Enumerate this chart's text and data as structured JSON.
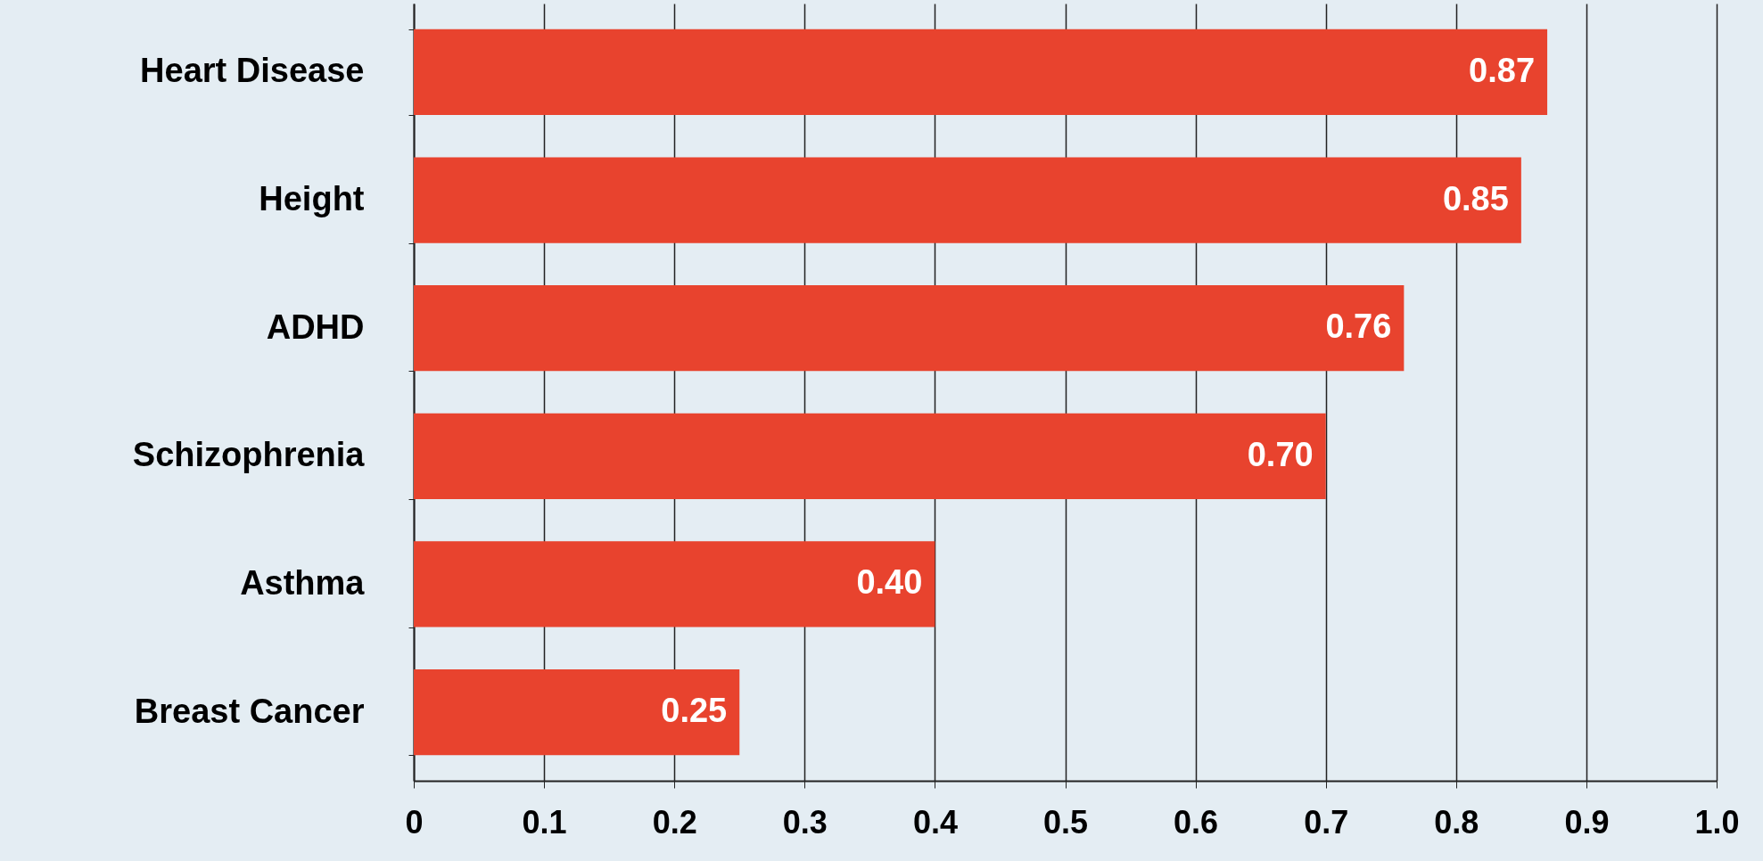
{
  "chart_data": {
    "type": "bar",
    "orientation": "horizontal",
    "categories": [
      "Heart Disease",
      "Height",
      "ADHD",
      "Schizophrenia",
      "Asthma",
      "Breast Cancer"
    ],
    "values": [
      0.87,
      0.85,
      0.76,
      0.7,
      0.4,
      0.25
    ],
    "value_labels": [
      "0.87",
      "0.85",
      "0.76",
      "0.70",
      "0.40",
      "0.25"
    ],
    "color": "#e8432e",
    "xlim": [
      0,
      1
    ],
    "xticks": [
      0,
      0.1,
      0.2,
      0.3,
      0.4,
      0.5,
      0.6,
      0.7,
      0.8,
      0.9,
      {
        "value": 1,
        "label": "1.0"
      }
    ],
    "grid": "x"
  }
}
